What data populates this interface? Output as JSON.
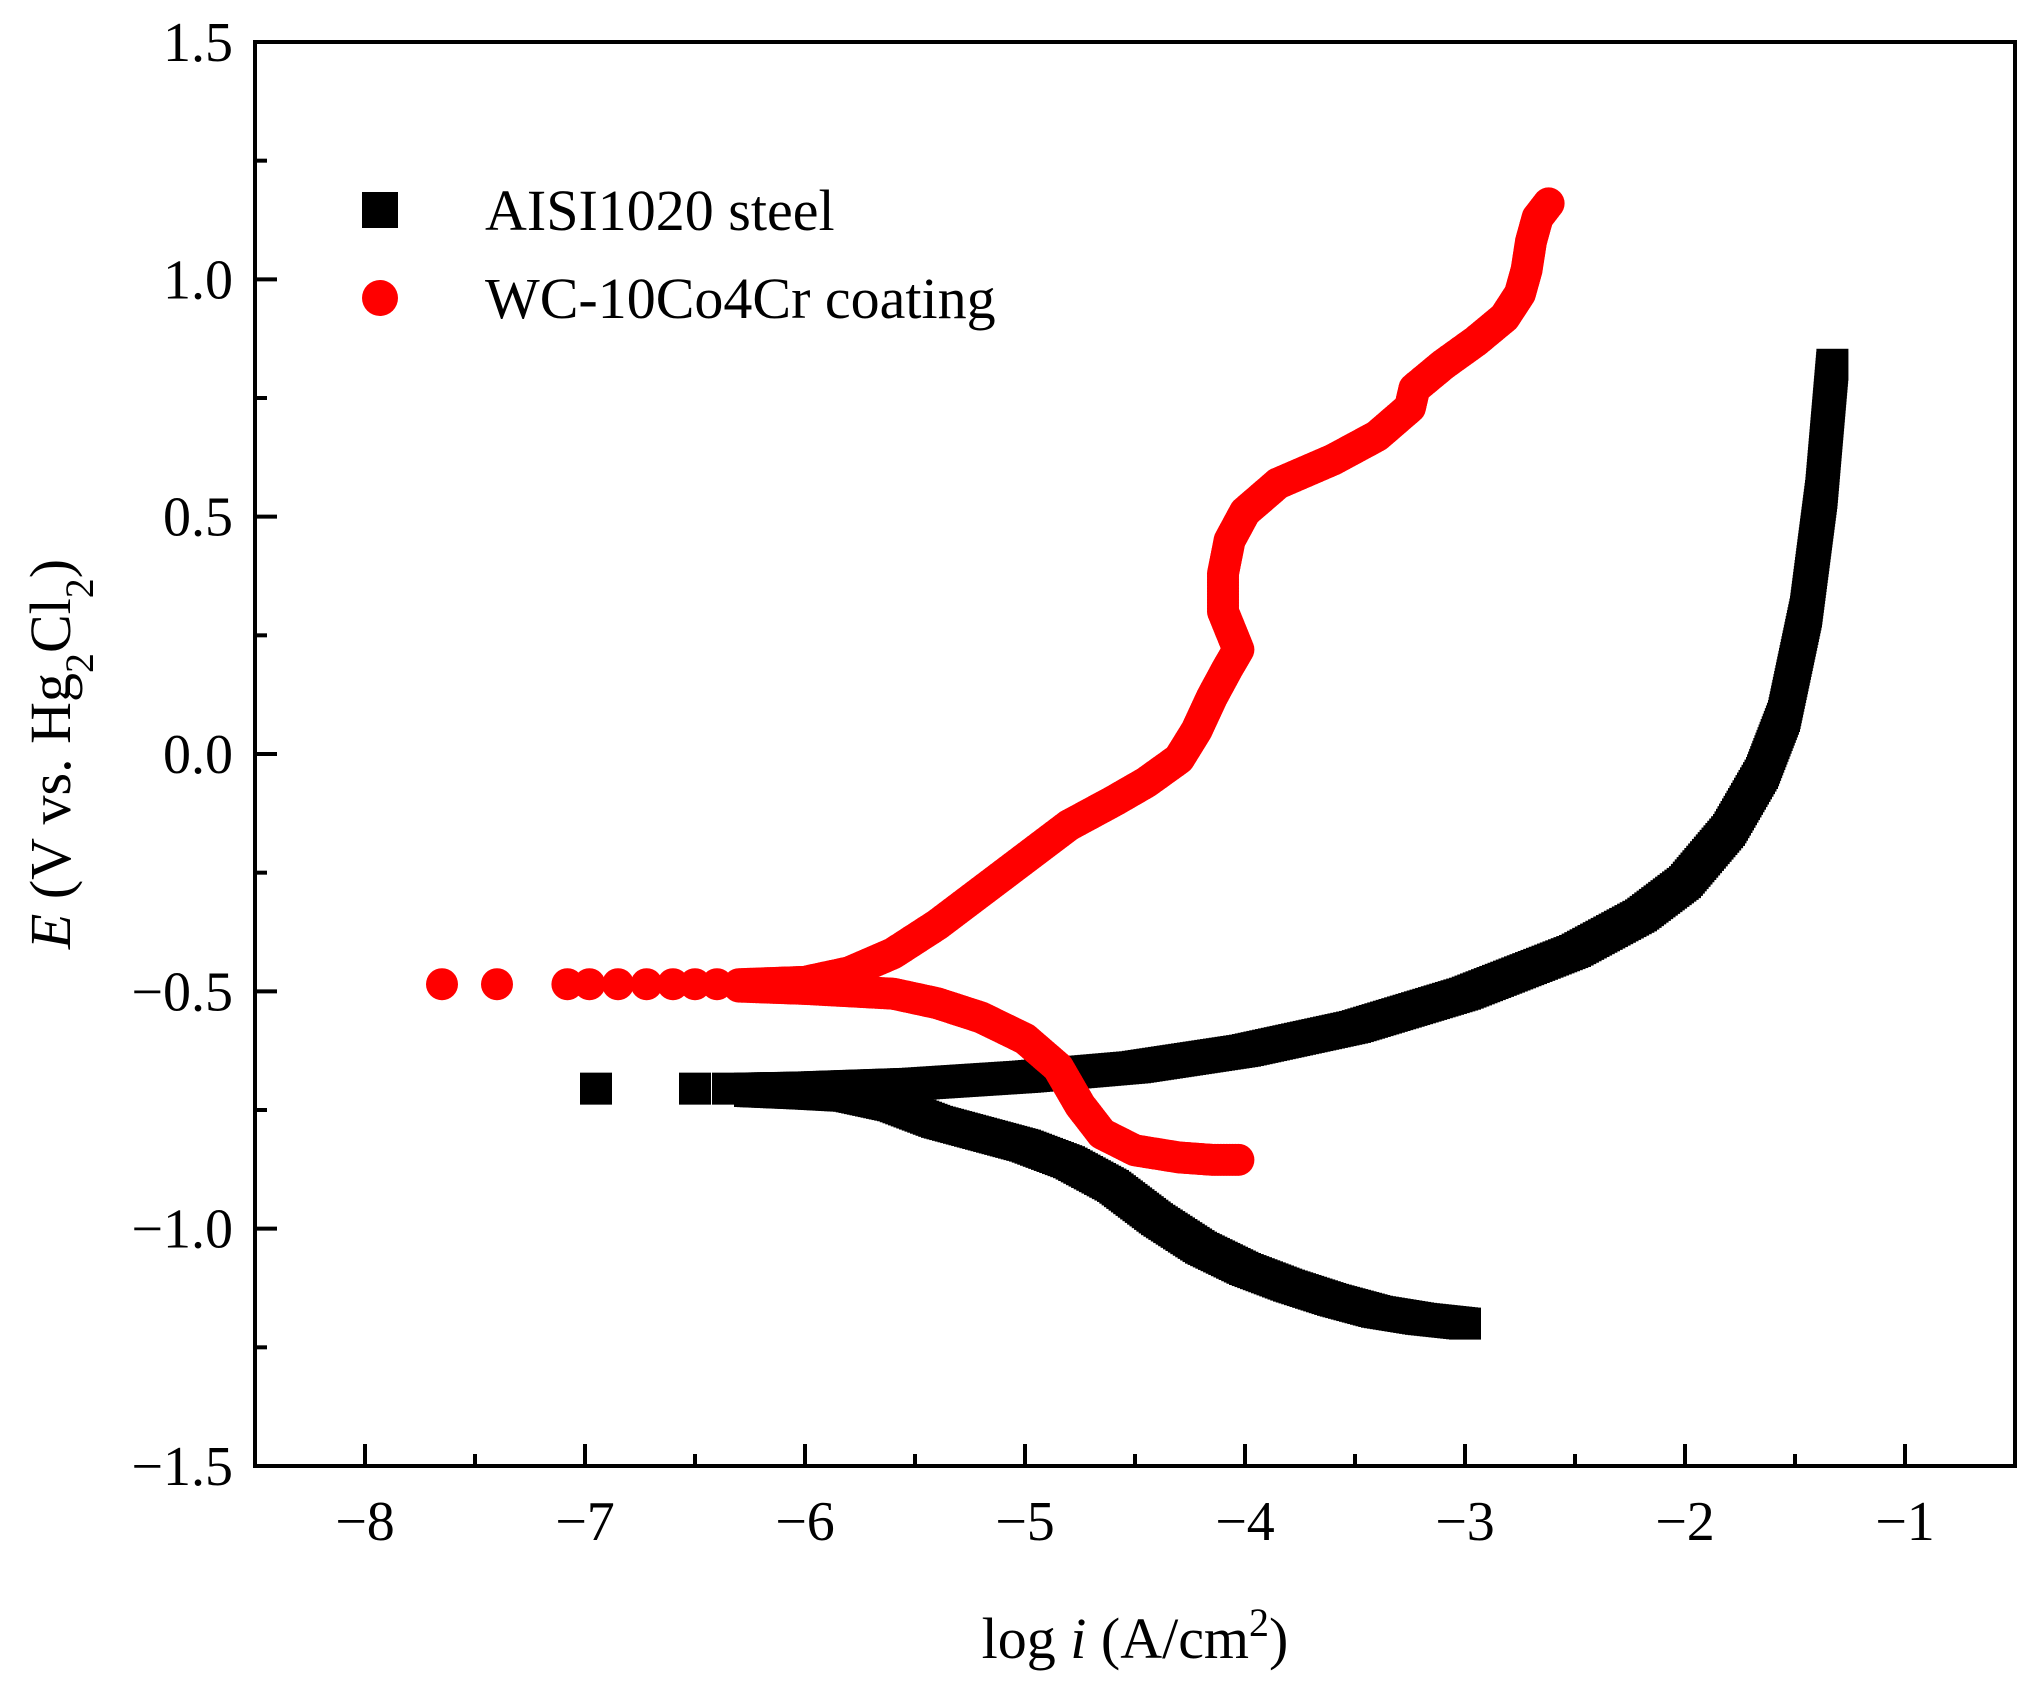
{
  "chart_data": {
    "type": "scatter",
    "title": "",
    "xlabel": {
      "prefix": "log ",
      "var": "i",
      "units": " (A/cm",
      "sup": "2",
      "close": ")"
    },
    "ylabel": {
      "var": "E",
      "units": " (V vs. Hg",
      "sub1": "2",
      "mid": "Cl",
      "sub2": "2",
      "close": ")"
    },
    "xlim": [
      -8.5,
      -0.5
    ],
    "ylim": [
      -1.5,
      1.5
    ],
    "x_ticks": [
      -8,
      -7,
      -6,
      -5,
      -4,
      -3,
      -2,
      -1
    ],
    "x_tick_labels": [
      "−8",
      "−7",
      "−6",
      "−5",
      "−4",
      "−3",
      "−2",
      "−1"
    ],
    "y_ticks": [
      -1.5,
      -1.0,
      -0.5,
      0.0,
      0.5,
      1.0,
      1.5
    ],
    "y_tick_labels": [
      "−1.5",
      "−1.0",
      "−0.5",
      "0.0",
      "0.5",
      "1.0",
      "1.5"
    ],
    "grid": false,
    "legend_position": "top-left",
    "series": [
      {
        "name": "AISI1020 steel",
        "marker": "square",
        "color": "#000000",
        "isolated_points": [
          [
            -6.95,
            -0.705
          ],
          [
            -6.5,
            -0.705
          ],
          [
            -6.35,
            -0.705
          ]
        ],
        "anodic_branch": [
          [
            -6.25,
            -0.705
          ],
          [
            -6.0,
            -0.703
          ],
          [
            -5.5,
            -0.695
          ],
          [
            -5.0,
            -0.68
          ],
          [
            -4.5,
            -0.66
          ],
          [
            -4.0,
            -0.625
          ],
          [
            -3.5,
            -0.575
          ],
          [
            -3.0,
            -0.505
          ],
          [
            -2.5,
            -0.415
          ],
          [
            -2.2,
            -0.34
          ],
          [
            -2.0,
            -0.27
          ],
          [
            -1.8,
            -0.16
          ],
          [
            -1.65,
            -0.04
          ],
          [
            -1.55,
            0.08
          ],
          [
            -1.45,
            0.3
          ],
          [
            -1.38,
            0.55
          ],
          [
            -1.33,
            0.82
          ]
        ],
        "cathodic_branch": [
          [
            -6.25,
            -0.71
          ],
          [
            -6.0,
            -0.715
          ],
          [
            -5.8,
            -0.72
          ],
          [
            -5.6,
            -0.74
          ],
          [
            -5.4,
            -0.775
          ],
          [
            -5.2,
            -0.8
          ],
          [
            -5.0,
            -0.825
          ],
          [
            -4.8,
            -0.86
          ],
          [
            -4.6,
            -0.91
          ],
          [
            -4.4,
            -0.98
          ],
          [
            -4.2,
            -1.04
          ],
          [
            -4.0,
            -1.085
          ],
          [
            -3.8,
            -1.12
          ],
          [
            -3.6,
            -1.15
          ],
          [
            -3.4,
            -1.175
          ],
          [
            -3.2,
            -1.19
          ],
          [
            -3.0,
            -1.2
          ]
        ]
      },
      {
        "name": "WC-10Co4Cr coating",
        "marker": "circle",
        "color": "#ff0000",
        "isolated_points": [
          [
            -7.65,
            -0.485
          ],
          [
            -7.4,
            -0.485
          ],
          [
            -7.08,
            -0.485
          ],
          [
            -6.98,
            -0.485
          ],
          [
            -6.85,
            -0.485
          ],
          [
            -6.72,
            -0.485
          ],
          [
            -6.6,
            -0.485
          ],
          [
            -6.5,
            -0.485
          ],
          [
            -6.4,
            -0.485
          ]
        ],
        "anodic_branch": [
          [
            -6.3,
            -0.485
          ],
          [
            -6.0,
            -0.48
          ],
          [
            -5.8,
            -0.46
          ],
          [
            -5.6,
            -0.42
          ],
          [
            -5.4,
            -0.36
          ],
          [
            -5.2,
            -0.29
          ],
          [
            -5.0,
            -0.22
          ],
          [
            -4.8,
            -0.15
          ],
          [
            -4.6,
            -0.1
          ],
          [
            -4.45,
            -0.06
          ],
          [
            -4.3,
            -0.01
          ],
          [
            -4.22,
            0.05
          ],
          [
            -4.15,
            0.12
          ],
          [
            -4.08,
            0.18
          ],
          [
            -4.03,
            0.22
          ],
          [
            -4.1,
            0.3
          ],
          [
            -4.1,
            0.38
          ],
          [
            -4.07,
            0.45
          ],
          [
            -4.0,
            0.51
          ],
          [
            -3.85,
            0.57
          ],
          [
            -3.6,
            0.62
          ],
          [
            -3.4,
            0.67
          ],
          [
            -3.25,
            0.73
          ],
          [
            -3.23,
            0.77
          ],
          [
            -3.1,
            0.82
          ],
          [
            -2.95,
            0.87
          ],
          [
            -2.82,
            0.92
          ],
          [
            -2.75,
            0.97
          ],
          [
            -2.72,
            1.02
          ],
          [
            -2.7,
            1.08
          ],
          [
            -2.67,
            1.13
          ],
          [
            -2.62,
            1.16
          ]
        ],
        "cathodic_branch": [
          [
            -6.3,
            -0.49
          ],
          [
            -6.0,
            -0.495
          ],
          [
            -5.8,
            -0.5
          ],
          [
            -5.6,
            -0.505
          ],
          [
            -5.4,
            -0.525
          ],
          [
            -5.2,
            -0.555
          ],
          [
            -5.0,
            -0.6
          ],
          [
            -4.85,
            -0.66
          ],
          [
            -4.75,
            -0.74
          ],
          [
            -4.65,
            -0.8
          ],
          [
            -4.5,
            -0.835
          ],
          [
            -4.3,
            -0.85
          ],
          [
            -4.15,
            -0.855
          ],
          [
            -4.03,
            -0.855
          ]
        ]
      }
    ]
  }
}
